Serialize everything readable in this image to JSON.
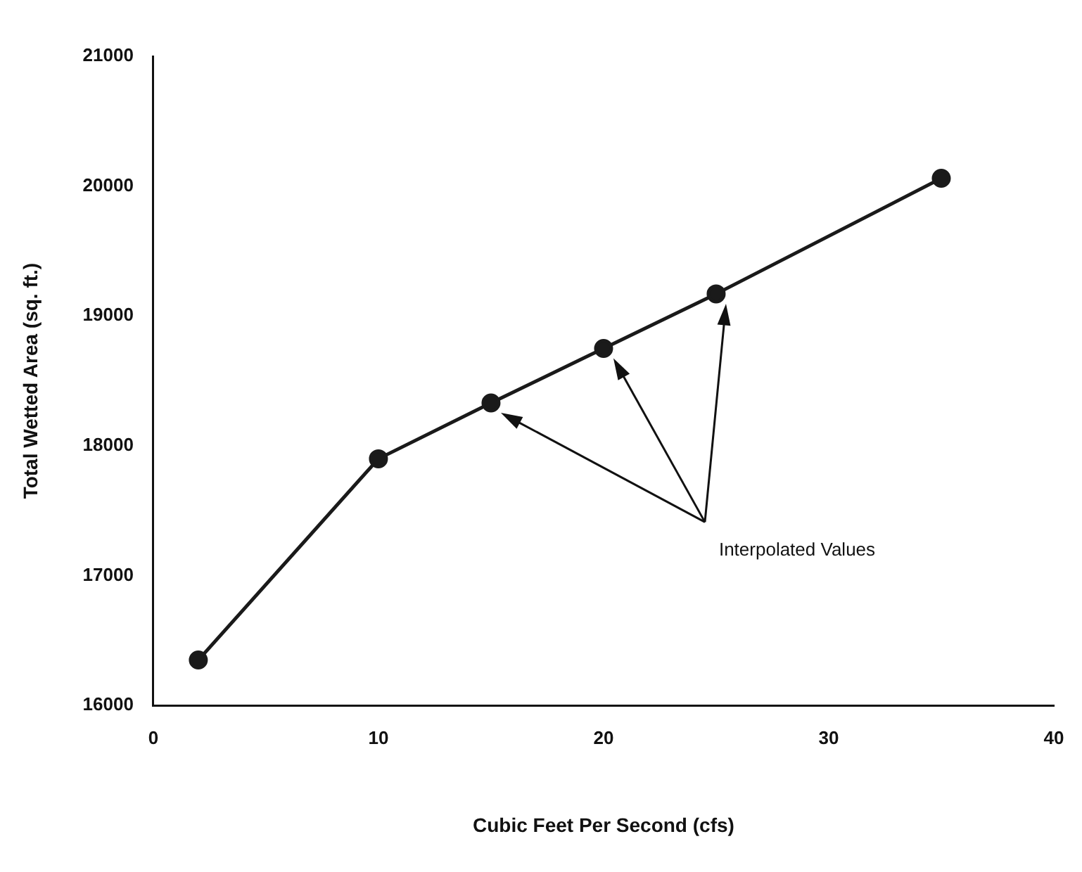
{
  "chart_data": {
    "type": "line",
    "xlabel": "Cubic Feet Per Second (cfs)",
    "ylabel": "Total Wetted Area (sq. ft.)",
    "x": [
      2,
      10,
      15,
      20,
      25,
      35
    ],
    "values": [
      16350,
      17900,
      18330,
      18750,
      19170,
      20060
    ],
    "color": "#1a1a1a",
    "marker": "circle",
    "line_style": "solid",
    "xlim": [
      0,
      40
    ],
    "xticks": [
      0,
      10,
      20,
      30,
      40
    ],
    "ylim": [
      16000,
      21000
    ],
    "yticks": [
      16000,
      17000,
      18000,
      19000,
      20000,
      21000
    ],
    "grid": false,
    "legend": false,
    "annotations": [
      "Interpolated Values"
    ]
  }
}
